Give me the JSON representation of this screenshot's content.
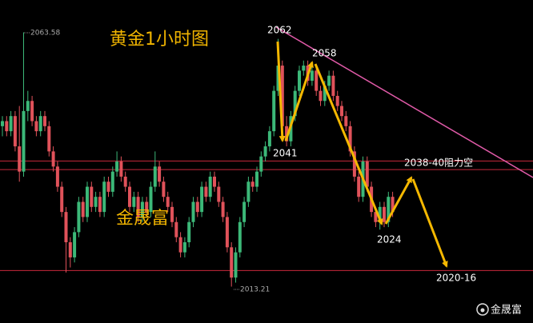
{
  "chart_data": {
    "type": "candlestick",
    "ylim": [
      2006,
      2070
    ],
    "up_color": "#3cb878",
    "down_color": "#e0525a",
    "level_color": "#c8283c",
    "levels": [
      2038.1,
      2036.4,
      2016.4
    ],
    "ohlc": [
      [
        2045,
        2047,
        2043,
        2046
      ],
      [
        2046,
        2047,
        2043,
        2044
      ],
      [
        2044,
        2048,
        2043,
        2047
      ],
      [
        2047,
        2048,
        2040,
        2041
      ],
      [
        2041,
        2049,
        2034,
        2036
      ],
      [
        2036,
        2063.58,
        2035,
        2048
      ],
      [
        2048,
        2052,
        2046,
        2050
      ],
      [
        2050,
        2051,
        2045,
        2046
      ],
      [
        2046,
        2047,
        2043,
        2044
      ],
      [
        2044,
        2048,
        2043,
        2047
      ],
      [
        2047,
        2048,
        2044,
        2045
      ],
      [
        2045,
        2046,
        2039,
        2040
      ],
      [
        2040,
        2041,
        2036,
        2037
      ],
      [
        2037,
        2038,
        2032,
        2033
      ],
      [
        2033,
        2034,
        2027,
        2028
      ],
      [
        2028,
        2029,
        2016,
        2022
      ],
      [
        2022,
        2023,
        2017,
        2019
      ],
      [
        2019,
        2025,
        2018,
        2024
      ],
      [
        2024,
        2031,
        2023,
        2030
      ],
      [
        2030,
        2031,
        2026,
        2027
      ],
      [
        2027,
        2034,
        2026,
        2033
      ],
      [
        2033,
        2034,
        2028,
        2029
      ],
      [
        2029,
        2032,
        2028,
        2031
      ],
      [
        2031,
        2032,
        2027,
        2028
      ],
      [
        2028,
        2035,
        2027,
        2034
      ],
      [
        2034,
        2035,
        2031,
        2032
      ],
      [
        2032,
        2037,
        2031,
        2036
      ],
      [
        2036,
        2040,
        2035,
        2038
      ],
      [
        2038,
        2039,
        2034,
        2035
      ],
      [
        2035,
        2036,
        2032,
        2033
      ],
      [
        2033,
        2034,
        2028,
        2029
      ],
      [
        2029,
        2032,
        2028,
        2031
      ],
      [
        2031,
        2032,
        2026,
        2027
      ],
      [
        2027,
        2031,
        2026,
        2030
      ],
      [
        2030,
        2031,
        2027,
        2028
      ],
      [
        2028,
        2034,
        2027,
        2033
      ],
      [
        2033,
        2040,
        2032,
        2037
      ],
      [
        2037,
        2038,
        2033,
        2034
      ],
      [
        2034,
        2035,
        2030,
        2031
      ],
      [
        2031,
        2032,
        2028,
        2029
      ],
      [
        2029,
        2030,
        2025,
        2026
      ],
      [
        2026,
        2027,
        2022,
        2023
      ],
      [
        2023,
        2024,
        2019,
        2020
      ],
      [
        2020,
        2023,
        2019,
        2022
      ],
      [
        2022,
        2027,
        2021,
        2026
      ],
      [
        2026,
        2031,
        2025,
        2030
      ],
      [
        2030,
        2031,
        2027,
        2028
      ],
      [
        2028,
        2034,
        2027,
        2033
      ],
      [
        2033,
        2034,
        2030,
        2031
      ],
      [
        2031,
        2036,
        2030,
        2035
      ],
      [
        2035,
        2036,
        2032,
        2033
      ],
      [
        2033,
        2034,
        2029,
        2030
      ],
      [
        2030,
        2031,
        2026,
        2027
      ],
      [
        2027,
        2028,
        2020,
        2021
      ],
      [
        2021,
        2022,
        2013.21,
        2015
      ],
      [
        2015,
        2021,
        2014,
        2020
      ],
      [
        2020,
        2027,
        2019,
        2026
      ],
      [
        2026,
        2031,
        2025,
        2030
      ],
      [
        2030,
        2035,
        2029,
        2034
      ],
      [
        2034,
        2035,
        2032,
        2033
      ],
      [
        2033,
        2037,
        2032,
        2036
      ],
      [
        2036,
        2040,
        2035,
        2039
      ],
      [
        2039,
        2042,
        2038,
        2041
      ],
      [
        2041,
        2045,
        2040,
        2044
      ],
      [
        2044,
        2053,
        2043,
        2052
      ],
      [
        2052,
        2062.3,
        2051,
        2057
      ],
      [
        2057,
        2058,
        2044,
        2045
      ],
      [
        2045,
        2047,
        2041,
        2042
      ],
      [
        2042,
        2048,
        2041,
        2047
      ],
      [
        2047,
        2053,
        2046,
        2052
      ],
      [
        2052,
        2057,
        2051,
        2056
      ],
      [
        2056,
        2058,
        2055,
        2057
      ],
      [
        2057,
        2058,
        2053,
        2054
      ],
      [
        2054,
        2057,
        2053,
        2056
      ],
      [
        2056,
        2057,
        2051,
        2052
      ],
      [
        2052,
        2053,
        2049,
        2050
      ],
      [
        2050,
        2054,
        2049,
        2053
      ],
      [
        2053,
        2056,
        2052,
        2055
      ],
      [
        2055,
        2056,
        2050,
        2051
      ],
      [
        2051,
        2052,
        2048,
        2049
      ],
      [
        2049,
        2050,
        2046,
        2047
      ],
      [
        2047,
        2048,
        2044,
        2045
      ],
      [
        2045,
        2046,
        2039,
        2040
      ],
      [
        2040,
        2041,
        2034,
        2035
      ],
      [
        2035,
        2036,
        2030,
        2031
      ],
      [
        2031,
        2039,
        2030,
        2038
      ],
      [
        2038,
        2039,
        2032,
        2033
      ],
      [
        2033,
        2034,
        2027,
        2028
      ],
      [
        2028,
        2029,
        2025,
        2026
      ],
      [
        2026,
        2030,
        2024.5,
        2029
      ],
      [
        2029,
        2030,
        2025,
        2026
      ],
      [
        2026,
        2032,
        2025,
        2031
      ],
      [
        2031,
        2032,
        2027,
        2028
      ]
    ],
    "max_label": 2063.58,
    "min_label": 2013.21,
    "title": "黄金1小时图",
    "watermark": "金晟富",
    "annotations": [
      "2062",
      "2058",
      "2041",
      "2024",
      "2038-40阻力空",
      "2020-16"
    ],
    "logo": "金晟富"
  }
}
